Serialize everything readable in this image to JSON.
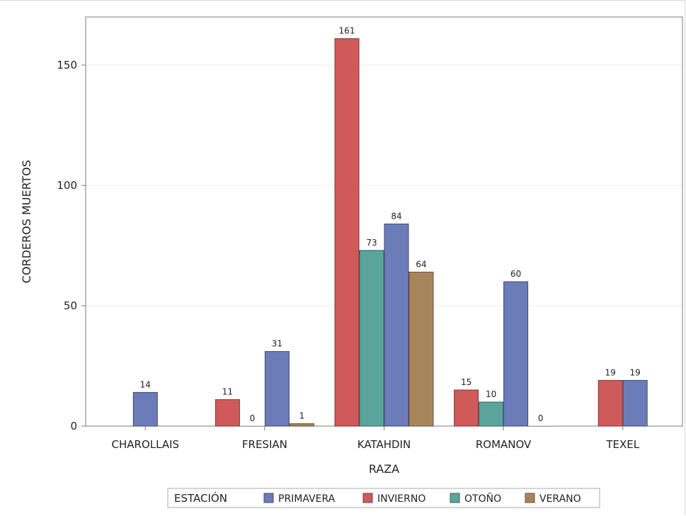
{
  "chart_data": {
    "type": "bar",
    "xlabel": "RAZA",
    "ylabel": "CORDEROS MUERTOS",
    "ylim": [
      0,
      170
    ],
    "yticks": [
      0,
      50,
      100,
      150
    ],
    "grid": true,
    "legend_position": "bottom",
    "legend_title": "ESTACIÓN",
    "categories": [
      "CHAROLLAIS",
      "FRESIAN",
      "KATAHDIN",
      "ROMANOV",
      "TEXEL"
    ],
    "series": [
      {
        "name": "PRIMAVERA",
        "color": "#6b7cb8",
        "values": [
          14,
          31,
          84,
          60,
          19
        ]
      },
      {
        "name": "INVIERNO",
        "color": "#cf5a59",
        "values": [
          null,
          11,
          161,
          15,
          19
        ]
      },
      {
        "name": "OTOÑO",
        "color": "#5ba49b",
        "values": [
          null,
          0,
          73,
          10,
          null
        ]
      },
      {
        "name": "VERANO",
        "color": "#a7855c",
        "values": [
          null,
          1,
          64,
          0,
          null
        ]
      }
    ],
    "category_series_order": [
      [
        "PRIMAVERA"
      ],
      [
        "INVIERNO",
        "OTOÑO",
        "PRIMAVERA",
        "VERANO"
      ],
      [
        "INVIERNO",
        "OTOÑO",
        "PRIMAVERA",
        "VERANO"
      ],
      [
        "INVIERNO",
        "OTOÑO",
        "PRIMAVERA",
        "VERANO"
      ],
      [
        "INVIERNO",
        "PRIMAVERA"
      ]
    ]
  }
}
